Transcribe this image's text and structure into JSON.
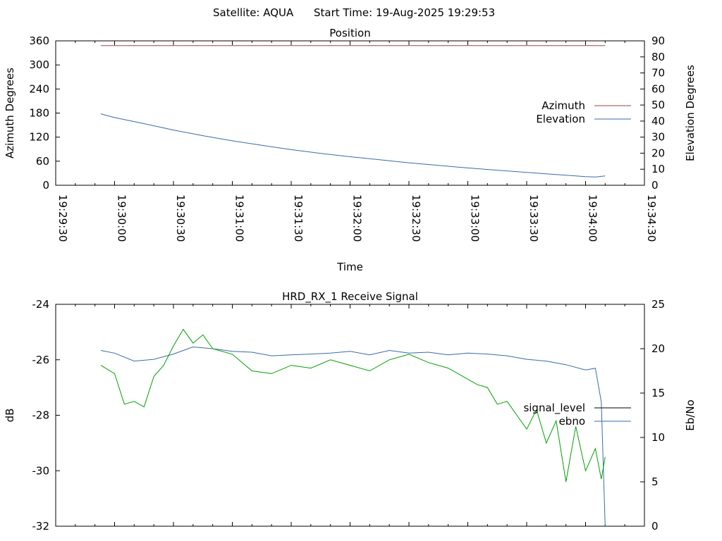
{
  "header": {
    "satellite": "Satellite: AQUA",
    "start_time": "Start Time: 19-Aug-2025 19:29:53"
  },
  "chart_data": [
    {
      "type": "line",
      "title": "Position",
      "xlabel": "Time",
      "ylabel": "Azimuth Degrees",
      "y2label": "Elevation Degrees",
      "x_ticks": [
        "19:29:30",
        "19:30:00",
        "19:30:30",
        "19:31:00",
        "19:31:30",
        "19:32:00",
        "19:32:30",
        "19:33:00",
        "19:33:30",
        "19:34:00",
        "19:34:30"
      ],
      "ylim": [
        0,
        360
      ],
      "y_ticks": [
        "0",
        "60",
        "120",
        "180",
        "240",
        "300",
        "360"
      ],
      "y2lim": [
        0,
        90
      ],
      "y2_ticks": [
        "0",
        "10",
        "20",
        "30",
        "40",
        "50",
        "60",
        "70",
        "80",
        "90"
      ],
      "legend_position": "right",
      "series": [
        {
          "name": "Azimuth",
          "axis": "left",
          "color": "#a0404a",
          "x": [
            "19:29:53",
            "19:30:30",
            "19:31:00",
            "19:31:30",
            "19:32:00",
            "19:32:30",
            "19:33:00",
            "19:33:30",
            "19:34:00",
            "19:34:10"
          ],
          "values": [
            348,
            348,
            348,
            348,
            348,
            348,
            348,
            348,
            348,
            348
          ]
        },
        {
          "name": "Elevation",
          "axis": "right",
          "color": "#3b6aa8",
          "x": [
            "19:29:53",
            "19:30:00",
            "19:30:15",
            "19:30:30",
            "19:30:45",
            "19:31:00",
            "19:31:15",
            "19:31:30",
            "19:31:45",
            "19:32:00",
            "19:32:15",
            "19:32:30",
            "19:32:45",
            "19:33:00",
            "19:33:15",
            "19:33:30",
            "19:33:45",
            "19:34:00",
            "19:34:05",
            "19:34:10"
          ],
          "values": [
            44.5,
            42.2,
            38.4,
            34.4,
            30.9,
            27.7,
            24.9,
            22.2,
            19.9,
            17.8,
            15.9,
            14.0,
            12.4,
            10.8,
            9.4,
            8.0,
            6.7,
            5.4,
            5.2,
            5.8
          ]
        }
      ]
    },
    {
      "type": "line",
      "title": "HRD_RX_1 Receive Signal",
      "ylabel": "dB",
      "y2label": "Eb/No",
      "ylim": [
        -32,
        -24
      ],
      "y_ticks": [
        "-32",
        "-30",
        "-28",
        "-26",
        "-24"
      ],
      "y2lim": [
        0,
        25
      ],
      "y2_ticks": [
        "0",
        "5",
        "10",
        "15",
        "20",
        "25"
      ],
      "legend_position": "right",
      "series": [
        {
          "name": "signal_level",
          "axis": "left",
          "color": "#000000",
          "x": [],
          "values": []
        },
        {
          "name": "ebno",
          "axis": "right",
          "color": "#3b6aa8",
          "x": [
            "19:29:53",
            "19:30:00",
            "19:30:10",
            "19:30:20",
            "19:30:30",
            "19:30:40",
            "19:30:50",
            "19:31:00",
            "19:31:10",
            "19:31:20",
            "19:31:30",
            "19:31:40",
            "19:31:50",
            "19:32:00",
            "19:32:10",
            "19:32:20",
            "19:32:30",
            "19:32:40",
            "19:32:50",
            "19:33:00",
            "19:33:10",
            "19:33:20",
            "19:33:30",
            "19:33:40",
            "19:33:50",
            "19:34:00",
            "19:34:05",
            "19:34:08",
            "19:34:10"
          ],
          "values": [
            19.8,
            19.5,
            18.6,
            18.8,
            19.4,
            20.2,
            20.0,
            19.7,
            19.6,
            19.2,
            19.3,
            19.4,
            19.5,
            19.7,
            19.3,
            19.8,
            19.5,
            19.6,
            19.3,
            19.5,
            19.4,
            19.2,
            18.8,
            18.6,
            18.2,
            17.6,
            17.8,
            14.0,
            0.0
          ]
        },
        {
          "name": "",
          "axis": "left",
          "color": "#00a000",
          "x": [
            "19:29:53",
            "19:30:00",
            "19:30:05",
            "19:30:10",
            "19:30:15",
            "19:30:20",
            "19:30:25",
            "19:30:30",
            "19:30:35",
            "19:30:40",
            "19:30:45",
            "19:30:50",
            "19:31:00",
            "19:31:10",
            "19:31:20",
            "19:31:30",
            "19:31:40",
            "19:31:50",
            "19:32:00",
            "19:32:10",
            "19:32:20",
            "19:32:30",
            "19:32:40",
            "19:32:50",
            "19:33:00",
            "19:33:05",
            "19:33:10",
            "19:33:15",
            "19:33:20",
            "19:33:25",
            "19:33:30",
            "19:33:35",
            "19:33:40",
            "19:33:45",
            "19:33:50",
            "19:33:55",
            "19:34:00",
            "19:34:05",
            "19:34:08",
            "19:34:10"
          ],
          "values": [
            -26.2,
            -26.5,
            -27.6,
            -27.5,
            -27.7,
            -26.6,
            -26.2,
            -25.5,
            -24.9,
            -25.4,
            -25.1,
            -25.6,
            -25.8,
            -26.4,
            -26.5,
            -26.2,
            -26.3,
            -26.0,
            -26.2,
            -26.4,
            -26.0,
            -25.8,
            -26.1,
            -26.3,
            -26.7,
            -26.9,
            -27.0,
            -27.6,
            -27.5,
            -28.0,
            -28.5,
            -27.8,
            -29.0,
            -28.2,
            -30.4,
            -28.4,
            -30.0,
            -29.2,
            -30.3,
            -29.5
          ]
        }
      ]
    }
  ]
}
